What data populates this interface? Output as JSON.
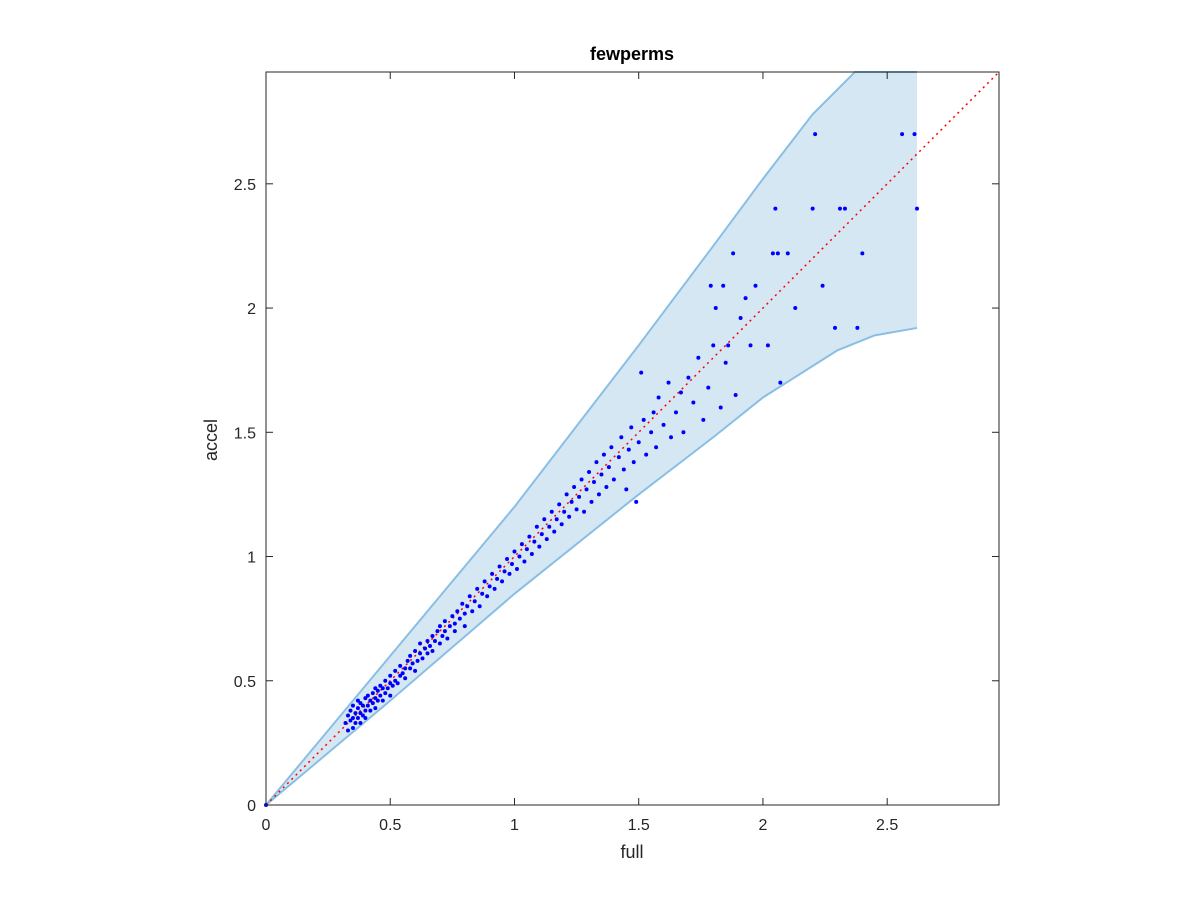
{
  "chart_data": {
    "type": "scatter",
    "title": "fewperms",
    "xlabel": "full",
    "ylabel": "accel",
    "xlim": [
      0,
      2.95
    ],
    "ylim": [
      0,
      2.95
    ],
    "xticks": [
      0,
      0.5,
      1,
      1.5,
      2,
      2.5
    ],
    "yticks": [
      0,
      0.5,
      1,
      1.5,
      2,
      2.5
    ],
    "xtick_labels": [
      "0",
      "0.5",
      "1",
      "1.5",
      "2",
      "2.5"
    ],
    "ytick_labels": [
      "0",
      "0.5",
      "1",
      "1.5",
      "2",
      "2.5"
    ],
    "grid": false,
    "colors": {
      "points": "#0000ff",
      "band_fill": "#d6e7f4",
      "band_edge": "#89bfe4",
      "reference_line": "#ff0000",
      "axes": "#262626"
    },
    "reference_line": {
      "x": [
        0,
        2.95
      ],
      "y": [
        0,
        2.95
      ],
      "style": "dotted"
    },
    "band": {
      "upper": [
        [
          0,
          0
        ],
        [
          0.5,
          0.6
        ],
        [
          1,
          1.2
        ],
        [
          1.5,
          1.85
        ],
        [
          1.8,
          2.25
        ],
        [
          2.0,
          2.52
        ],
        [
          2.2,
          2.78
        ],
        [
          2.37,
          2.95
        ],
        [
          2.62,
          2.95
        ]
      ],
      "lower": [
        [
          0,
          0
        ],
        [
          0.5,
          0.42
        ],
        [
          1,
          0.85
        ],
        [
          1.5,
          1.25
        ],
        [
          1.8,
          1.48
        ],
        [
          2.0,
          1.64
        ],
        [
          2.3,
          1.83
        ],
        [
          2.45,
          1.89
        ],
        [
          2.62,
          1.92
        ]
      ]
    },
    "points": [
      [
        0.32,
        0.33
      ],
      [
        0.33,
        0.3
      ],
      [
        0.33,
        0.36
      ],
      [
        0.34,
        0.34
      ],
      [
        0.34,
        0.38
      ],
      [
        0.35,
        0.31
      ],
      [
        0.35,
        0.35
      ],
      [
        0.35,
        0.4
      ],
      [
        0.36,
        0.33
      ],
      [
        0.36,
        0.37
      ],
      [
        0.37,
        0.35
      ],
      [
        0.37,
        0.39
      ],
      [
        0.37,
        0.42
      ],
      [
        0.38,
        0.33
      ],
      [
        0.38,
        0.37
      ],
      [
        0.38,
        0.41
      ],
      [
        0.39,
        0.36
      ],
      [
        0.39,
        0.4
      ],
      [
        0.4,
        0.38
      ],
      [
        0.4,
        0.43
      ],
      [
        0.4,
        0.35
      ],
      [
        0.41,
        0.4
      ],
      [
        0.41,
        0.44
      ],
      [
        0.42,
        0.38
      ],
      [
        0.42,
        0.42
      ],
      [
        0.43,
        0.41
      ],
      [
        0.43,
        0.45
      ],
      [
        0.44,
        0.39
      ],
      [
        0.44,
        0.43
      ],
      [
        0.44,
        0.47
      ],
      [
        0.45,
        0.42
      ],
      [
        0.45,
        0.46
      ],
      [
        0.46,
        0.44
      ],
      [
        0.46,
        0.48
      ],
      [
        0.47,
        0.42
      ],
      [
        0.47,
        0.47
      ],
      [
        0.48,
        0.45
      ],
      [
        0.48,
        0.5
      ],
      [
        0.49,
        0.47
      ],
      [
        0.5,
        0.44
      ],
      [
        0.5,
        0.49
      ],
      [
        0.5,
        0.52
      ],
      [
        0.51,
        0.48
      ],
      [
        0.52,
        0.5
      ],
      [
        0.52,
        0.54
      ],
      [
        0.53,
        0.49
      ],
      [
        0.54,
        0.52
      ],
      [
        0.54,
        0.56
      ],
      [
        0.55,
        0.53
      ],
      [
        0.56,
        0.51
      ],
      [
        0.56,
        0.55
      ],
      [
        0.57,
        0.58
      ],
      [
        0.58,
        0.55
      ],
      [
        0.58,
        0.6
      ],
      [
        0.59,
        0.57
      ],
      [
        0.6,
        0.54
      ],
      [
        0.6,
        0.62
      ],
      [
        0.61,
        0.58
      ],
      [
        0.62,
        0.61
      ],
      [
        0.62,
        0.65
      ],
      [
        0.63,
        0.59
      ],
      [
        0.64,
        0.63
      ],
      [
        0.65,
        0.61
      ],
      [
        0.65,
        0.66
      ],
      [
        0.66,
        0.64
      ],
      [
        0.67,
        0.68
      ],
      [
        0.67,
        0.62
      ],
      [
        0.68,
        0.66
      ],
      [
        0.69,
        0.7
      ],
      [
        0.7,
        0.65
      ],
      [
        0.7,
        0.72
      ],
      [
        0.71,
        0.68
      ],
      [
        0.72,
        0.74
      ],
      [
        0.72,
        0.7
      ],
      [
        0.73,
        0.67
      ],
      [
        0.74,
        0.72
      ],
      [
        0.75,
        0.76
      ],
      [
        0.76,
        0.73
      ],
      [
        0.76,
        0.7
      ],
      [
        0.77,
        0.78
      ],
      [
        0.78,
        0.75
      ],
      [
        0.79,
        0.81
      ],
      [
        0.8,
        0.77
      ],
      [
        0.8,
        0.72
      ],
      [
        0.81,
        0.8
      ],
      [
        0.82,
        0.84
      ],
      [
        0.83,
        0.78
      ],
      [
        0.84,
        0.82
      ],
      [
        0.85,
        0.87
      ],
      [
        0.86,
        0.8
      ],
      [
        0.87,
        0.85
      ],
      [
        0.88,
        0.9
      ],
      [
        0.89,
        0.84
      ],
      [
        0.9,
        0.88
      ],
      [
        0.91,
        0.93
      ],
      [
        0.92,
        0.87
      ],
      [
        0.93,
        0.91
      ],
      [
        0.94,
        0.96
      ],
      [
        0.95,
        0.9
      ],
      [
        0.96,
        0.94
      ],
      [
        0.97,
        0.99
      ],
      [
        0.98,
        0.93
      ],
      [
        0.99,
        0.97
      ],
      [
        1.0,
        1.02
      ],
      [
        1.01,
        0.95
      ],
      [
        1.02,
        1.0
      ],
      [
        1.03,
        1.05
      ],
      [
        1.04,
        0.98
      ],
      [
        1.05,
        1.03
      ],
      [
        1.06,
        1.08
      ],
      [
        1.07,
        1.01
      ],
      [
        1.08,
        1.06
      ],
      [
        1.09,
        1.12
      ],
      [
        1.1,
        1.04
      ],
      [
        1.11,
        1.09
      ],
      [
        1.12,
        1.15
      ],
      [
        1.13,
        1.07
      ],
      [
        1.14,
        1.12
      ],
      [
        1.15,
        1.18
      ],
      [
        1.16,
        1.1
      ],
      [
        1.17,
        1.15
      ],
      [
        1.18,
        1.21
      ],
      [
        1.19,
        1.13
      ],
      [
        1.2,
        1.18
      ],
      [
        1.21,
        1.25
      ],
      [
        1.22,
        1.16
      ],
      [
        1.23,
        1.22
      ],
      [
        1.24,
        1.28
      ],
      [
        1.25,
        1.19
      ],
      [
        1.26,
        1.24
      ],
      [
        1.27,
        1.31
      ],
      [
        1.28,
        1.18
      ],
      [
        1.29,
        1.27
      ],
      [
        1.3,
        1.34
      ],
      [
        1.31,
        1.22
      ],
      [
        1.32,
        1.3
      ],
      [
        1.33,
        1.38
      ],
      [
        1.34,
        1.25
      ],
      [
        1.35,
        1.33
      ],
      [
        1.36,
        1.41
      ],
      [
        1.37,
        1.28
      ],
      [
        1.38,
        1.36
      ],
      [
        1.39,
        1.44
      ],
      [
        1.4,
        1.31
      ],
      [
        1.42,
        1.4
      ],
      [
        1.43,
        1.48
      ],
      [
        1.44,
        1.35
      ],
      [
        1.45,
        1.27
      ],
      [
        1.46,
        1.43
      ],
      [
        1.47,
        1.52
      ],
      [
        1.48,
        1.38
      ],
      [
        1.49,
        1.22
      ],
      [
        1.5,
        1.46
      ],
      [
        1.51,
        1.74
      ],
      [
        1.52,
        1.55
      ],
      [
        1.53,
        1.41
      ],
      [
        1.55,
        1.5
      ],
      [
        1.56,
        1.58
      ],
      [
        1.57,
        1.44
      ],
      [
        1.58,
        1.64
      ],
      [
        1.6,
        1.53
      ],
      [
        1.62,
        1.7
      ],
      [
        1.63,
        1.48
      ],
      [
        1.65,
        1.58
      ],
      [
        1.67,
        1.66
      ],
      [
        1.68,
        1.5
      ],
      [
        1.7,
        1.72
      ],
      [
        1.72,
        1.62
      ],
      [
        1.74,
        1.8
      ],
      [
        1.76,
        1.55
      ],
      [
        1.78,
        1.68
      ],
      [
        1.79,
        2.09
      ],
      [
        1.8,
        1.85
      ],
      [
        1.81,
        2.0
      ],
      [
        1.83,
        1.6
      ],
      [
        1.84,
        2.09
      ],
      [
        1.85,
        1.78
      ],
      [
        1.86,
        1.85
      ],
      [
        1.88,
        2.22
      ],
      [
        1.89,
        1.65
      ],
      [
        1.91,
        1.96
      ],
      [
        1.93,
        2.04
      ],
      [
        1.95,
        1.85
      ],
      [
        1.97,
        2.09
      ],
      [
        2.02,
        1.85
      ],
      [
        2.04,
        2.22
      ],
      [
        2.05,
        2.4
      ],
      [
        2.06,
        2.22
      ],
      [
        2.07,
        1.7
      ],
      [
        2.1,
        2.22
      ],
      [
        2.13,
        2.0
      ],
      [
        2.2,
        2.4
      ],
      [
        2.21,
        2.7
      ],
      [
        2.24,
        2.09
      ],
      [
        2.29,
        1.92
      ],
      [
        2.31,
        2.4
      ],
      [
        2.33,
        2.4
      ],
      [
        2.38,
        1.92
      ],
      [
        2.4,
        2.22
      ],
      [
        2.56,
        2.7
      ],
      [
        2.61,
        2.7
      ],
      [
        2.62,
        2.4
      ],
      [
        0.0,
        0.0
      ]
    ]
  }
}
